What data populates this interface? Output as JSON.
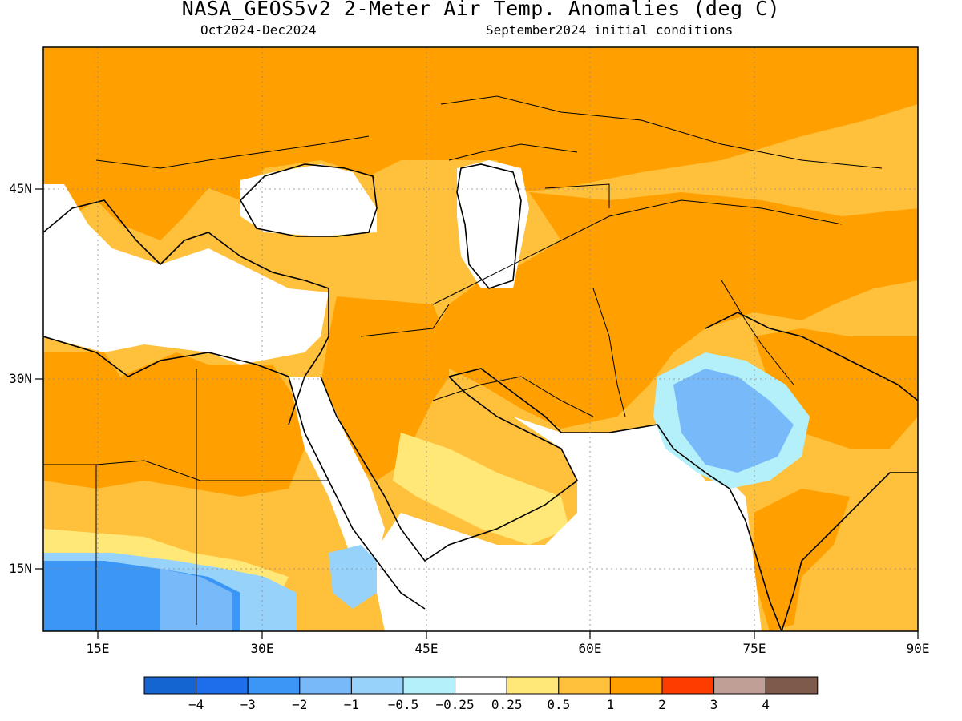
{
  "title": "NASA_GEOS5v2 2-Meter Air Temp. Anomalies (deg C)",
  "subtitle_left": "Oct2024-Dec2024",
  "subtitle_right": "September2024 initial conditions",
  "axes": {
    "x_ticks": [
      "15E",
      "30E",
      "45E",
      "60E",
      "75E",
      "90E"
    ],
    "y_ticks": [
      "45N",
      "30N",
      "15N"
    ],
    "lon_range": [
      10,
      90
    ],
    "lat_range": [
      10,
      55
    ]
  },
  "colorbar": {
    "colors": [
      "#1464d2",
      "#1e6eeb",
      "#3c96f5",
      "#78b9fa",
      "#96d2fa",
      "#b4f0fa",
      "#ffffff",
      "#ffe878",
      "#ffc03c",
      "#ffa000",
      "#ff3c00",
      "#c0a096",
      "#7d5a4b"
    ],
    "labels": [
      "-4",
      "-3",
      "-2",
      "-1",
      "-0.5",
      "-0.25",
      "0.25",
      "0.5",
      "1",
      "2",
      "3",
      "4"
    ]
  }
}
